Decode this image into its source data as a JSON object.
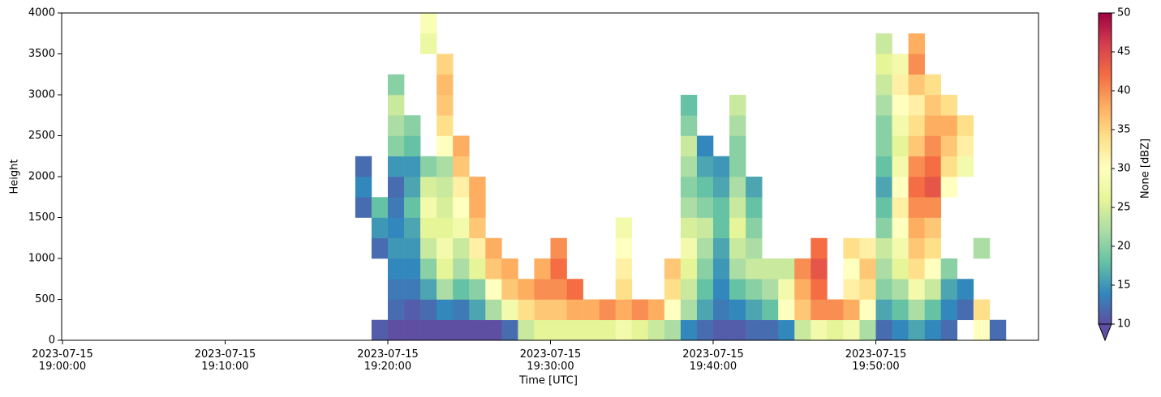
{
  "chart_data": {
    "type": "heatmap",
    "xlabel": "Time [UTC]",
    "ylabel": "Height",
    "colorbar_label": "None [dBZ]",
    "xlim": [
      -0.05,
      60
    ],
    "ylim": [
      0,
      4000
    ],
    "xticks": [
      {
        "value": 0,
        "label": "2023-07-15\n19:00:00"
      },
      {
        "value": 10,
        "label": "2023-07-15\n19:10:00"
      },
      {
        "value": 20,
        "label": "2023-07-15\n19:20:00"
      },
      {
        "value": 30,
        "label": "2023-07-15\n19:30:00"
      },
      {
        "value": 40,
        "label": "2023-07-15\n19:40:00"
      },
      {
        "value": 50,
        "label": "2023-07-15\n19:50:00"
      }
    ],
    "yticks": [
      0,
      500,
      1000,
      1500,
      2000,
      2500,
      3000,
      3500,
      4000
    ],
    "clim": [
      10,
      50
    ],
    "cticks": [
      10,
      15,
      20,
      25,
      30,
      35,
      40,
      45,
      50
    ],
    "colormap": [
      "#5e4fa2",
      "#3288bd",
      "#66c2a5",
      "#abdda4",
      "#e6f598",
      "#ffffbf",
      "#fee08b",
      "#fdae61",
      "#f46d43",
      "#d53e4f",
      "#9e0142"
    ],
    "xbins": [
      18,
      19,
      20,
      21,
      22,
      23,
      24,
      25,
      26,
      27,
      28,
      29,
      30,
      31,
      32,
      33,
      34,
      35,
      36,
      37,
      38,
      39,
      40,
      41,
      42,
      43,
      44,
      45,
      46,
      47,
      48,
      49,
      50,
      51,
      52,
      53,
      54,
      55,
      56,
      57,
      58
    ],
    "ybins": [
      0,
      250,
      500,
      750,
      1000,
      1250,
      1500,
      1750,
      2000,
      2250,
      2500,
      2750,
      3000,
      3250,
      3500,
      3750,
      4000
    ],
    "z": [
      [
        null,
        null,
        null,
        null,
        null,
        null,
        12,
        14,
        12,
        null,
        null,
        null,
        null,
        null,
        null,
        null
      ],
      [
        11,
        null,
        null,
        null,
        12,
        15,
        18,
        null,
        null,
        null,
        null,
        null,
        null,
        null,
        null,
        null
      ],
      [
        10,
        12,
        13,
        14,
        15,
        14,
        13,
        12,
        15,
        20,
        22,
        24,
        20,
        null,
        null,
        null
      ],
      [
        10,
        11,
        13,
        14,
        15,
        16,
        18,
        16,
        15,
        18,
        20,
        null,
        null,
        null,
        null,
        null
      ],
      [
        10,
        12,
        16,
        20,
        24,
        26,
        28,
        25,
        20,
        null,
        null,
        null,
        null,
        null,
        27,
        29
      ],
      [
        10,
        14,
        22,
        26,
        28,
        26,
        25,
        24,
        22,
        30,
        34,
        36,
        37,
        35,
        null,
        null
      ],
      [
        10,
        13,
        18,
        22,
        24,
        28,
        30,
        32,
        36,
        38,
        null,
        null,
        null,
        null,
        null,
        null
      ],
      [
        10,
        16,
        20,
        26,
        32,
        36,
        38,
        38,
        null,
        null,
        null,
        null,
        null,
        null,
        null,
        null
      ],
      [
        10,
        22,
        30,
        36,
        38,
        null,
        null,
        null,
        null,
        null,
        null,
        null,
        null,
        null,
        null,
        null
      ],
      [
        12,
        28,
        36,
        38,
        null,
        null,
        null,
        null,
        null,
        null,
        null,
        null,
        null,
        null,
        null,
        null
      ],
      [
        24,
        34,
        38,
        null,
        null,
        null,
        null,
        null,
        null,
        null,
        null,
        null,
        null,
        null,
        null,
        null
      ],
      [
        26,
        36,
        40,
        38,
        null,
        null,
        null,
        null,
        null,
        null,
        null,
        null,
        null,
        null,
        null,
        null
      ],
      [
        26,
        36,
        40,
        42,
        40,
        null,
        null,
        null,
        null,
        null,
        null,
        null,
        null,
        null,
        null,
        null
      ],
      [
        26,
        38,
        42,
        null,
        null,
        null,
        null,
        null,
        null,
        null,
        null,
        null,
        null,
        null,
        null,
        null
      ],
      [
        26,
        38,
        null,
        null,
        null,
        null,
        null,
        null,
        null,
        null,
        null,
        null,
        null,
        null,
        null,
        null
      ],
      [
        26,
        40,
        null,
        null,
        null,
        null,
        null,
        null,
        null,
        null,
        null,
        null,
        null,
        null,
        null,
        null
      ],
      [
        28,
        38,
        34,
        32,
        30,
        28,
        null,
        null,
        null,
        null,
        null,
        null,
        null,
        null,
        null,
        null
      ],
      [
        26,
        40,
        null,
        null,
        null,
        null,
        null,
        null,
        null,
        null,
        null,
        null,
        null,
        null,
        null,
        null
      ],
      [
        24,
        38,
        null,
        null,
        null,
        null,
        null,
        null,
        null,
        null,
        null,
        null,
        null,
        null,
        null,
        null
      ],
      [
        22,
        30,
        34,
        36,
        null,
        null,
        null,
        null,
        null,
        null,
        null,
        null,
        null,
        null,
        null,
        null
      ],
      [
        14,
        22,
        24,
        26,
        28,
        25,
        22,
        20,
        22,
        24,
        20,
        18,
        null,
        null,
        null,
        null
      ],
      [
        12,
        16,
        18,
        20,
        22,
        24,
        20,
        18,
        16,
        14,
        null,
        null,
        null,
        null,
        null,
        null
      ],
      [
        11,
        13,
        14,
        15,
        16,
        18,
        18,
        16,
        15,
        null,
        null,
        null,
        null,
        null,
        null,
        null
      ],
      [
        11,
        14,
        18,
        22,
        24,
        26,
        24,
        22,
        20,
        20,
        22,
        24,
        null,
        null,
        null,
        null
      ],
      [
        12,
        16,
        20,
        24,
        22,
        20,
        18,
        16,
        null,
        null,
        null,
        null,
        null,
        null,
        null,
        null
      ],
      [
        12,
        18,
        22,
        24,
        null,
        null,
        null,
        null,
        null,
        null,
        null,
        null,
        null,
        null,
        null,
        null
      ],
      [
        14,
        30,
        28,
        24,
        null,
        null,
        null,
        null,
        null,
        null,
        null,
        null,
        null,
        null,
        null,
        null
      ],
      [
        24,
        36,
        38,
        40,
        null,
        null,
        null,
        null,
        null,
        null,
        null,
        null,
        null,
        null,
        null,
        null
      ],
      [
        28,
        40,
        42,
        44,
        42,
        null,
        null,
        null,
        null,
        null,
        null,
        null,
        null,
        null,
        null,
        null
      ],
      [
        26,
        40,
        null,
        null,
        null,
        null,
        null,
        null,
        null,
        null,
        null,
        null,
        null,
        null,
        null,
        null
      ],
      [
        28,
        38,
        32,
        30,
        34,
        null,
        null,
        null,
        null,
        null,
        null,
        null,
        null,
        null,
        null,
        null
      ],
      [
        22,
        30,
        34,
        36,
        32,
        null,
        null,
        null,
        null,
        null,
        null,
        null,
        null,
        null,
        null,
        null
      ],
      [
        12,
        16,
        20,
        22,
        24,
        20,
        18,
        16,
        18,
        20,
        20,
        22,
        24,
        26,
        24,
        null
      ],
      [
        14,
        18,
        22,
        26,
        28,
        30,
        32,
        30,
        28,
        26,
        28,
        30,
        32,
        28,
        null,
        null
      ],
      [
        16,
        22,
        28,
        34,
        36,
        38,
        40,
        42,
        40,
        36,
        34,
        32,
        36,
        40,
        38,
        null
      ],
      [
        14,
        18,
        24,
        30,
        34,
        36,
        40,
        44,
        42,
        40,
        38,
        36,
        34,
        null,
        null,
        null
      ],
      [
        12,
        14,
        16,
        20,
        null,
        null,
        null,
        30,
        34,
        36,
        38,
        34,
        null,
        null,
        null,
        null
      ],
      [
        null,
        12,
        14,
        null,
        null,
        null,
        null,
        null,
        28,
        32,
        34,
        null,
        null,
        null,
        null,
        null
      ],
      [
        30,
        34,
        null,
        null,
        22,
        null,
        null,
        null,
        null,
        null,
        null,
        null,
        null,
        null,
        null,
        null
      ],
      [
        12,
        null,
        null,
        null,
        null,
        null,
        null,
        null,
        null,
        null,
        null,
        null,
        null,
        null,
        null,
        null
      ]
    ]
  }
}
